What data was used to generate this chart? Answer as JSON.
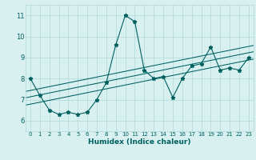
{
  "xlabel": "Humidex (Indice chaleur)",
  "x_data": [
    0,
    1,
    2,
    3,
    4,
    5,
    6,
    7,
    8,
    9,
    10,
    11,
    12,
    13,
    14,
    15,
    16,
    17,
    18,
    19,
    20,
    21,
    22,
    23
  ],
  "y_main": [
    8.0,
    7.2,
    6.5,
    6.3,
    6.4,
    6.3,
    6.4,
    7.0,
    7.8,
    9.6,
    11.0,
    10.7,
    8.4,
    8.0,
    8.1,
    7.1,
    8.0,
    8.6,
    8.7,
    9.5,
    8.4,
    8.5,
    8.4,
    9.0
  ],
  "line_color": "#006060",
  "bg_color": "#d8f0f0",
  "grid_color": "#b0d8d8",
  "ylim": [
    5.5,
    11.5
  ],
  "xlim": [
    -0.5,
    23.5
  ],
  "yticks": [
    6,
    7,
    8,
    9,
    10,
    11
  ],
  "xticks": [
    0,
    1,
    2,
    3,
    4,
    5,
    6,
    7,
    8,
    9,
    10,
    11,
    12,
    13,
    14,
    15,
    16,
    17,
    18,
    19,
    20,
    21,
    22,
    23
  ],
  "reg_offsets": [
    0.4,
    0.1,
    -0.25
  ]
}
